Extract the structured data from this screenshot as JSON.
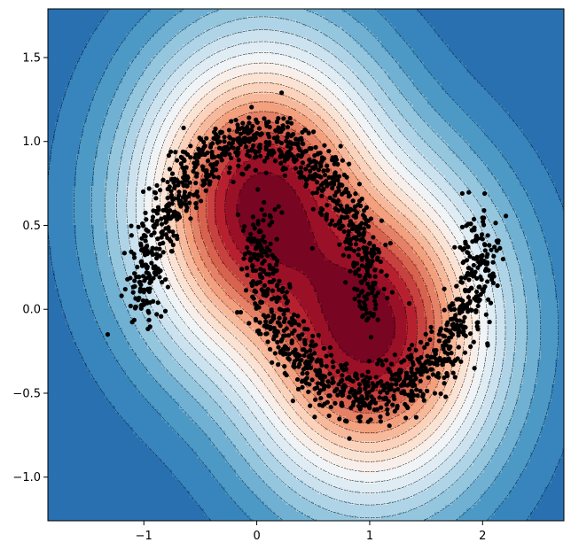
{
  "chart_data": {
    "type": "contour",
    "title": "",
    "xlabel": "",
    "ylabel": "",
    "xlim": [
      -1.85,
      2.72
    ],
    "ylim": [
      -1.26,
      1.79
    ],
    "x_ticks": [
      {
        "value": -1,
        "label": "−1"
      },
      {
        "value": 0,
        "label": "0"
      },
      {
        "value": 1,
        "label": "1"
      },
      {
        "value": 2,
        "label": "2"
      }
    ],
    "y_ticks": [
      {
        "value": 1.5,
        "label": "1.5"
      },
      {
        "value": 1.0,
        "label": "1.0"
      },
      {
        "value": 0.5,
        "label": "0.5"
      },
      {
        "value": 0.0,
        "label": "0.0"
      },
      {
        "value": -0.5,
        "label": "−0.5"
      },
      {
        "value": -1.0,
        "label": "−1.0"
      }
    ],
    "grid": false,
    "colormap": "RdBu",
    "contour_field": {
      "description": "filled contour of a density-like score with two elliptical peaks",
      "levels": 20,
      "peaks": [
        {
          "center": [
            0.05,
            0.62
          ],
          "value": 1.0
        },
        {
          "center": [
            1.0,
            -0.12
          ],
          "value": 1.0
        }
      ]
    },
    "scatter": {
      "color": "#000000",
      "dataset": "two interleaving half-moons with noise",
      "upper_moon": {
        "center": [
          0.0,
          0.0
        ],
        "radius": 1.0,
        "theta_range_deg": [
          0,
          180
        ]
      },
      "lower_moon": {
        "center": [
          1.0,
          0.5
        ],
        "radius": 1.0,
        "theta_range_deg": [
          180,
          360
        ]
      },
      "outliers": [
        [
          -1.32,
          -0.15
        ],
        [
          0.22,
          1.29
        ],
        [
          1.82,
          0.69
        ],
        [
          0.82,
          -0.77
        ]
      ]
    },
    "colors": {
      "darkest_red": "#67001f",
      "red": "#b2182b",
      "mid_red": "#d6604d",
      "salmon": "#f4a582",
      "peach": "#fddbc7",
      "white": "#f7f7f7",
      "light_blue": "#d1e5f0",
      "blue": "#92c5de",
      "mid_blue": "#4393c3",
      "dark_blue": "#2166ac"
    }
  }
}
